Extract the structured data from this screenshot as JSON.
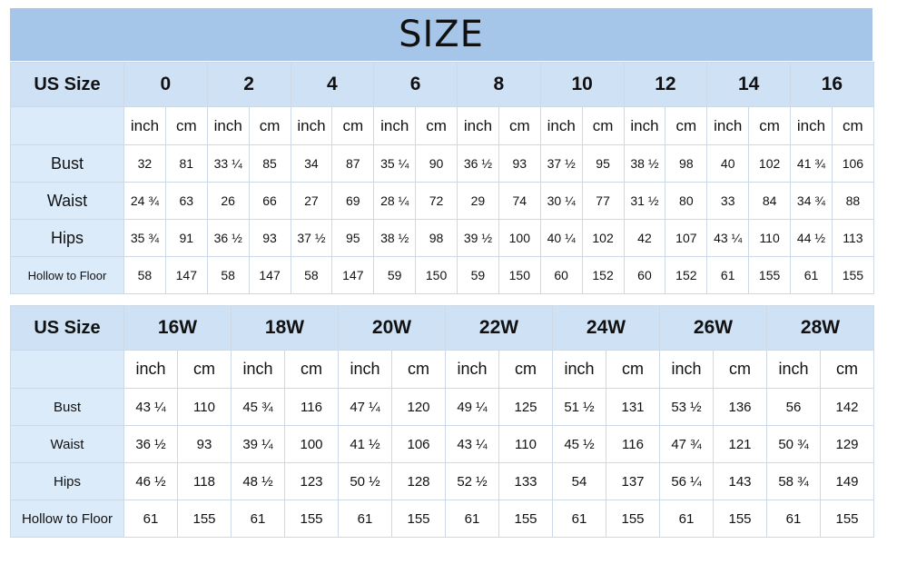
{
  "title": "SIZE",
  "tables": [
    {
      "header_label": "US Size",
      "sizes": [
        "0",
        "2",
        "4",
        "6",
        "8",
        "10",
        "12",
        "14",
        "16"
      ],
      "units": [
        "inch",
        "cm"
      ],
      "rows": [
        {
          "label": "Bust",
          "values": [
            "32",
            "81",
            "33 ¼",
            "85",
            "34",
            "87",
            "35 ¼",
            "90",
            "36 ½",
            "93",
            "37 ½",
            "95",
            "38 ½",
            "98",
            "40",
            "102",
            "41 ¾",
            "106"
          ]
        },
        {
          "label": "Waist",
          "values": [
            "24 ¾",
            "63",
            "26",
            "66",
            "27",
            "69",
            "28 ¼",
            "72",
            "29",
            "74",
            "30 ¼",
            "77",
            "31 ½",
            "80",
            "33",
            "84",
            "34 ¾",
            "88"
          ]
        },
        {
          "label": "Hips",
          "values": [
            "35 ¾",
            "91",
            "36 ½",
            "93",
            "37 ½",
            "95",
            "38 ½",
            "98",
            "39 ½",
            "100",
            "40 ¼",
            "102",
            "42",
            "107",
            "43 ¼",
            "110",
            "44 ½",
            "113"
          ]
        },
        {
          "label": "Hollow to Floor",
          "values": [
            "58",
            "147",
            "58",
            "147",
            "58",
            "147",
            "59",
            "150",
            "59",
            "150",
            "60",
            "152",
            "60",
            "152",
            "61",
            "155",
            "61",
            "155"
          ]
        }
      ]
    },
    {
      "header_label": "US Size",
      "sizes": [
        "16W",
        "18W",
        "20W",
        "22W",
        "24W",
        "26W",
        "28W"
      ],
      "units": [
        "inch",
        "cm"
      ],
      "rows": [
        {
          "label": "Bust",
          "values": [
            "43 ¼",
            "110",
            "45 ¾",
            "116",
            "47 ¼",
            "120",
            "49 ¼",
            "125",
            "51 ½",
            "131",
            "53 ½",
            "136",
            "56",
            "142"
          ]
        },
        {
          "label": "Waist",
          "values": [
            "36 ½",
            "93",
            "39 ¼",
            "100",
            "41 ½",
            "106",
            "43 ¼",
            "110",
            "45 ½",
            "116",
            "47 ¾",
            "121",
            "50 ¾",
            "129"
          ]
        },
        {
          "label": "Hips",
          "values": [
            "46 ½",
            "118",
            "48 ½",
            "123",
            "50 ½",
            "128",
            "52 ½",
            "133",
            "54",
            "137",
            "56 ¼",
            "143",
            "58 ¾",
            "149"
          ]
        },
        {
          "label": "Hollow to Floor",
          "values": [
            "61",
            "155",
            "61",
            "155",
            "61",
            "155",
            "61",
            "155",
            "61",
            "155",
            "61",
            "155",
            "61",
            "155"
          ]
        }
      ]
    }
  ]
}
